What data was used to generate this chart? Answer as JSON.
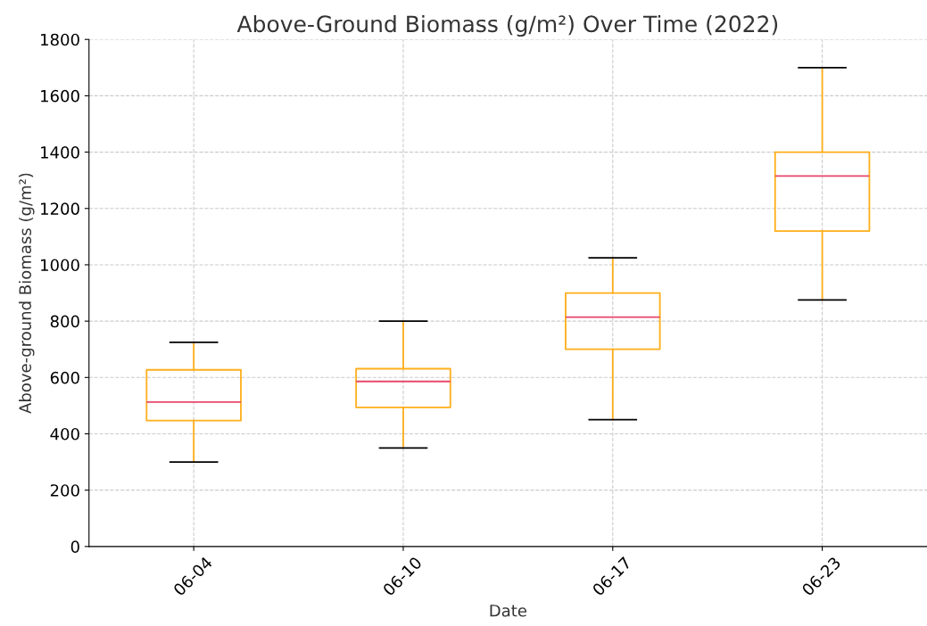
{
  "chart_data": {
    "type": "box",
    "title": "Above-Ground Biomass (g/m²) Over Time (2022)",
    "xlabel": "Date",
    "ylabel": "Above-ground Biomass (g/m²)",
    "categories": [
      "06-04",
      "06-10",
      "06-17",
      "06-23"
    ],
    "series": [
      {
        "color": "#ffae1a",
        "boxes": [
          {
            "low": 300,
            "q1": 447,
            "median": 513,
            "q3": 627,
            "high": 725
          },
          {
            "low": 350,
            "q1": 494,
            "median": 586,
            "q3": 631,
            "high": 800
          },
          {
            "low": 450,
            "q1": 700,
            "median": 814,
            "q3": 900,
            "high": 1025
          },
          {
            "low": 875,
            "q1": 1120,
            "median": 1315,
            "q3": 1400,
            "high": 1700
          }
        ]
      }
    ],
    "ylim": [
      0,
      1800
    ],
    "yticks": [
      0,
      200,
      400,
      600,
      800,
      1000,
      1200,
      1400,
      1600,
      1800
    ],
    "grid": true
  }
}
